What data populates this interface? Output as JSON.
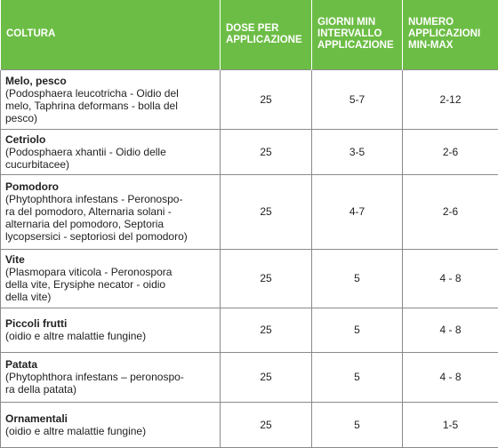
{
  "table": {
    "header": [
      [
        "COLTURA"
      ],
      [
        "DOSE PER",
        "APPLICAZIONE"
      ],
      [
        "GIORNI MIN",
        "INTERVALLO",
        "APPLICAZIONE"
      ],
      [
        "NUMERO",
        "APPLICAZIONI",
        "MIN-MAX"
      ]
    ],
    "rows": [
      {
        "name": "Melo, pesco",
        "desc": [
          "(Podosphaera leucotricha - Oidio del",
          "melo, Taphrina deformans - bolla del",
          "pesco)"
        ],
        "dose": "25",
        "interval": "5-7",
        "number": "2-12"
      },
      {
        "name": "Cetriolo",
        "desc": [
          "(Podosphaera xhantii - Oidio delle",
          "cucurbitacee)"
        ],
        "dose": "25",
        "interval": "3-5",
        "number": "2-6"
      },
      {
        "name": "Pomodoro",
        "desc": [
          "(Phytophthora infestans - Peronospo-",
          "ra del pomodoro, Alternaria solani -",
          "alternaria del pomodoro, Septoria",
          "lycopsersici - septoriosi del pomodoro)"
        ],
        "dose": "25",
        "interval": "4-7",
        "number": "2-6"
      },
      {
        "name": "Vite",
        "desc": [
          "(Plasmopara viticola - Peronospora",
          "della vite, Erysiphe necator - oidio",
          "della vite)"
        ],
        "dose": "25",
        "interval": "5",
        "number": "4 - 8"
      },
      {
        "name": "Piccoli frutti",
        "desc": [
          "(oidio e altre malattie fungine)"
        ],
        "dose": "25",
        "interval": "5",
        "number": "4 - 8"
      },
      {
        "name": "Patata",
        "desc": [
          "(Phytophthora infestans – peronospo-",
          "ra della patata)"
        ],
        "dose": "25",
        "interval": "5",
        "number": "4 - 8"
      },
      {
        "name": "Ornamentali",
        "desc": [
          "(oidio e altre malattie fungine)"
        ],
        "dose": "25",
        "interval": "5",
        "number": "1-5"
      }
    ]
  }
}
